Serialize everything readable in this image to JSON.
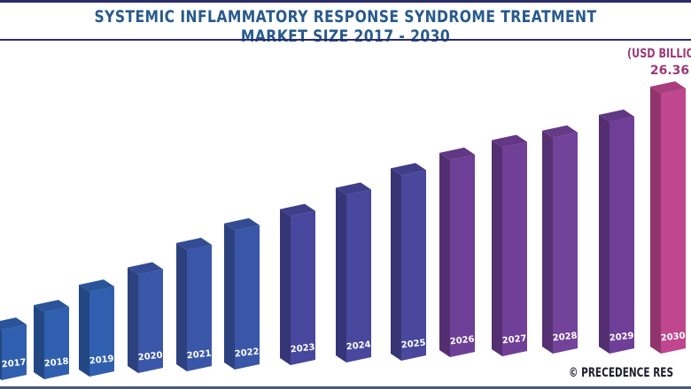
{
  "chart_data": {
    "type": "bar",
    "title": "SYSTEMIC INFLAMMATORY RESPONSE SYNDROME TREATMENT MARKET SIZE 2017 - 2030",
    "unit_label": "(USD BILLIO",
    "categories": [
      "2017",
      "2018",
      "2019",
      "2020",
      "2021",
      "2022",
      "2023",
      "2024",
      "2025",
      "2026",
      "2027",
      "2028",
      "2029",
      "2030"
    ],
    "values": [
      5.1,
      6.8,
      8.6,
      10.0,
      12.3,
      14.1,
      15.1,
      17.0,
      18.8,
      20.0,
      21.2,
      21.9,
      23.5,
      26.36
    ],
    "data_labels": {
      "2030": "26.36"
    },
    "colors": [
      "#2f5fae",
      "#2f5fae",
      "#2f5fae",
      "#3a56a8",
      "#3a56a8",
      "#3a56a8",
      "#47479e",
      "#47479e",
      "#4a479c",
      "#6e3f96",
      "#703f98",
      "#734399",
      "#6f3f98",
      "#c0468f"
    ],
    "grid": false,
    "legend": "none"
  },
  "credit": "© PRECEDENCE RES"
}
